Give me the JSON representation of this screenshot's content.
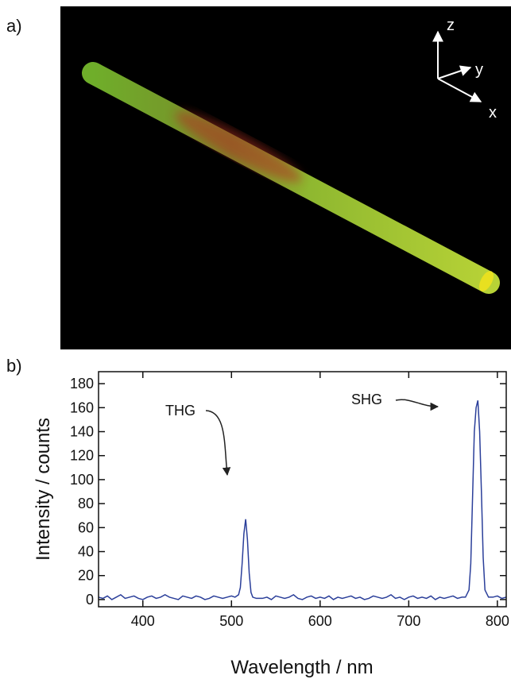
{
  "panel_a": {
    "label": "a)",
    "axis_labels": {
      "z": "z",
      "y": "y",
      "x": "x"
    }
  },
  "chart_data": {
    "type": "line",
    "panel_label": "b)",
    "x_label": "Wavelength / nm",
    "y_label": "Intensity / counts",
    "annotations": [
      "THG",
      "SHG"
    ],
    "color": "#2b3f9a",
    "xlim": [
      350,
      810
    ],
    "ylim": [
      -6,
      190
    ],
    "xticks": [
      400,
      500,
      600,
      700,
      800
    ],
    "yticks": [
      0,
      20,
      40,
      60,
      80,
      100,
      120,
      140,
      160,
      180
    ],
    "x": [
      350,
      355,
      360,
      365,
      370,
      375,
      380,
      385,
      390,
      395,
      400,
      405,
      410,
      415,
      420,
      425,
      430,
      435,
      440,
      445,
      450,
      455,
      460,
      465,
      470,
      475,
      480,
      485,
      490,
      495,
      500,
      504,
      508,
      510,
      512,
      514,
      516,
      518,
      520,
      522,
      524,
      528,
      535,
      540,
      545,
      550,
      555,
      560,
      565,
      570,
      575,
      580,
      585,
      590,
      595,
      600,
      605,
      610,
      615,
      620,
      625,
      630,
      635,
      640,
      645,
      650,
      655,
      660,
      665,
      670,
      675,
      680,
      685,
      690,
      695,
      700,
      705,
      710,
      715,
      720,
      725,
      730,
      735,
      740,
      745,
      750,
      755,
      760,
      764,
      768,
      770,
      772,
      774,
      776,
      778,
      780,
      782,
      784,
      786,
      790,
      795,
      800,
      805,
      810
    ],
    "values": [
      2,
      1,
      3,
      0,
      2,
      4,
      1,
      2,
      3,
      1,
      0,
      2,
      3,
      1,
      2,
      4,
      2,
      1,
      0,
      3,
      2,
      1,
      3,
      2,
      0,
      1,
      3,
      2,
      1,
      2,
      3,
      2,
      4,
      10,
      30,
      55,
      67,
      50,
      22,
      6,
      2,
      1,
      1,
      2,
      0,
      3,
      2,
      1,
      2,
      4,
      1,
      0,
      2,
      3,
      1,
      2,
      1,
      3,
      0,
      2,
      1,
      2,
      3,
      1,
      2,
      0,
      1,
      3,
      2,
      1,
      2,
      4,
      1,
      2,
      0,
      2,
      3,
      1,
      2,
      1,
      3,
      0,
      2,
      1,
      2,
      3,
      1,
      2,
      2,
      8,
      30,
      85,
      140,
      160,
      166,
      140,
      90,
      35,
      8,
      2,
      2,
      3,
      1,
      2
    ]
  }
}
